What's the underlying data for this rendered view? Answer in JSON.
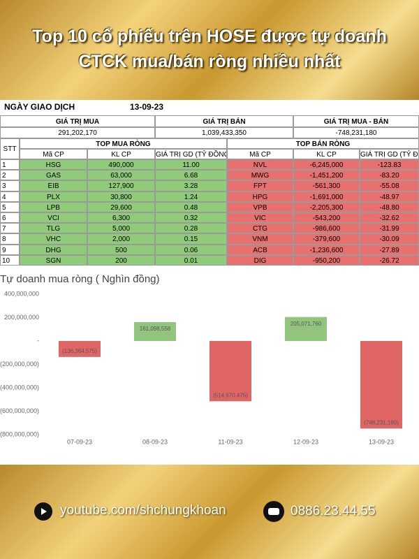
{
  "header": {
    "title": [
      "Top 10 cổ phiếu trên HOSE được tự doanh",
      "CTCK mua/bán ròng nhiều nhất"
    ]
  },
  "table": {
    "date_label": "NGÀY GIAO DỊCH",
    "date": "13-09-23",
    "summary_headers": [
      "GIÁ TRỊ MUA",
      "GIÁ TRỊ BÁN",
      "GIÁ TRỊ MUA - BÁN"
    ],
    "summary_values": [
      "291,202,170",
      "1,039,433,350",
      "-748,231,180"
    ],
    "index_header": "STT",
    "buy_header": "TOP MUA RÒNG",
    "sell_header": "TOP BÁN RÒNG",
    "columns": [
      "Mã CP",
      "KL CP",
      "GIÁ TRỊ GD (TỶ ĐỒNG)"
    ],
    "rows": [
      [
        "1",
        "HSG",
        "490,000",
        "11.00",
        "NVL",
        "-6,245,000",
        "-123.83"
      ],
      [
        "2",
        "GAS",
        "63,000",
        "6.68",
        "MWG",
        "-1,451,200",
        "-83.20"
      ],
      [
        "3",
        "EIB",
        "127,900",
        "3.28",
        "FPT",
        "-561,300",
        "-55.08"
      ],
      [
        "4",
        "PLX",
        "30,800",
        "1.24",
        "HPG",
        "-1,691,000",
        "-48.97"
      ],
      [
        "5",
        "LPB",
        "29,600",
        "0.48",
        "VPB",
        "-2,205,300",
        "-48.80"
      ],
      [
        "6",
        "VCI",
        "6,300",
        "0.32",
        "VIC",
        "-543,200",
        "-32.62"
      ],
      [
        "7",
        "TLG",
        "5,000",
        "0.28",
        "CTG",
        "-986,600",
        "-31.99"
      ],
      [
        "8",
        "VHC",
        "2,000",
        "0.15",
        "VNM",
        "-379,600",
        "-30.09"
      ],
      [
        "9",
        "DHG",
        "500",
        "0.06",
        "ACB",
        "-1,236,600",
        "-27.89"
      ],
      [
        "10",
        "SGN",
        "200",
        "0.01",
        "DIG",
        "-950,200",
        "-26.72"
      ]
    ]
  },
  "chart_data": {
    "type": "bar",
    "title": "Tự doanh mua ròng ( Nghìn đồng)",
    "categories": [
      "07-09-23",
      "08-09-23",
      "11-09-23",
      "12-09-23",
      "13-09-23"
    ],
    "values": [
      -136364575,
      161098558,
      -514970475,
      205071760,
      -748231180
    ],
    "value_labels": [
      "(136,364,575)",
      "161,098,558",
      "(514,970,475)",
      "205,071,760",
      "(748,231,180)"
    ],
    "positive_color": "#93c47d",
    "negative_color": "#e06666",
    "ylim": [
      -800000000,
      400000000
    ],
    "yticks": [
      {
        "value": 400000000,
        "label": "400,000,000"
      },
      {
        "value": 200000000,
        "label": "200,000,000"
      },
      {
        "value": 0,
        "label": "-"
      },
      {
        "value": -200000000,
        "label": "(200,000,000)"
      },
      {
        "value": -400000000,
        "label": "(400,000,000)"
      },
      {
        "value": -600000000,
        "label": "(600,000,000)"
      },
      {
        "value": -800000000,
        "label": "(800,000,000)"
      }
    ],
    "grid": false
  },
  "footer": {
    "youtube": "youtube.com/shchungkhoan",
    "phone": "0886.23.44.55"
  }
}
